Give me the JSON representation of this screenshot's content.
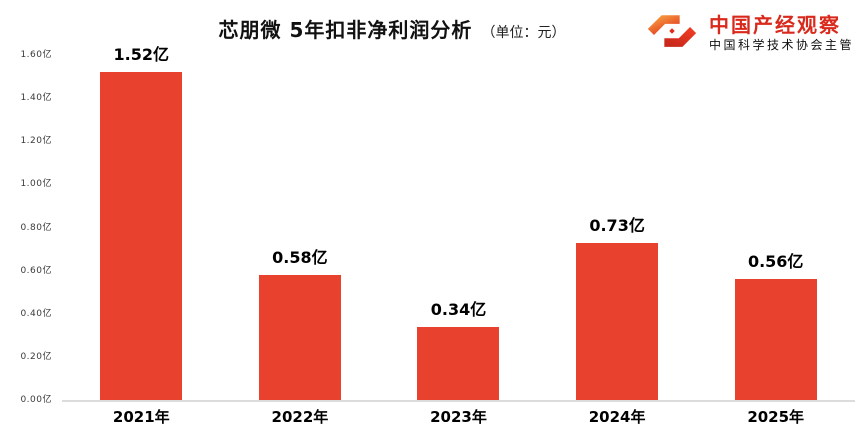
{
  "logo": {
    "brand": "中国产经观察",
    "tagline": "中国科学技术协会主管",
    "brand_color": "#d9291c"
  },
  "chart_data": {
    "type": "bar",
    "title": "芯朋微 5年扣非净利润分析",
    "title_suffix": "（单位：元）",
    "categories": [
      "2021年",
      "2022年",
      "2023年",
      "2024年",
      "2025年"
    ],
    "values": [
      1.52,
      0.58,
      0.34,
      0.73,
      0.56
    ],
    "value_labels": [
      "1.52亿",
      "0.58亿",
      "0.34亿",
      "0.73亿",
      "0.56亿"
    ],
    "unit": "亿",
    "xlabel": "",
    "ylabel": "",
    "ylim": [
      0,
      1.6
    ],
    "y_ticks": [
      0,
      0.2,
      0.4,
      0.6,
      0.8,
      1.0,
      1.2,
      1.4,
      1.6
    ],
    "y_tick_labels": [
      "0.00亿",
      "0.20亿",
      "0.40亿",
      "0.60亿",
      "0.80亿",
      "1.00亿",
      "1.20亿",
      "1.40亿",
      "1.60亿"
    ],
    "bar_color": "#e8412d",
    "axis_line_color": "#dcdcdc",
    "grid": false,
    "legend": null
  }
}
